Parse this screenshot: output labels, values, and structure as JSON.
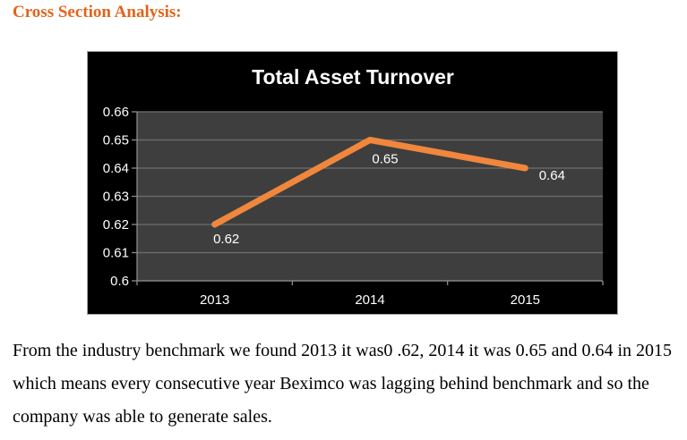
{
  "page": {
    "heading": "Cross Section Analysis:",
    "heading_color": "#e2641a",
    "paragraph_lines": [
      "From the industry benchmark we found 2013 it was0 .62, 2014 it was 0.65 and 0.64 in 2015",
      "which means every consecutive year Beximco was lagging behind benchmark and so the",
      "company was able to generate sales."
    ]
  },
  "chart_data": {
    "type": "line",
    "title": "Total Asset Turnover",
    "categories": [
      "2013",
      "2014",
      "2015"
    ],
    "values": [
      0.62,
      0.65,
      0.64
    ],
    "data_labels": [
      "0.62",
      "0.65",
      "0.64"
    ],
    "yticks": [
      "0.66",
      "0.65",
      "0.64",
      "0.63",
      "0.62",
      "0.61",
      "0.6"
    ],
    "ylim": [
      0.6,
      0.66
    ],
    "grid": true,
    "legend": "none",
    "xlabel": "",
    "ylabel": "",
    "colors": {
      "line": "#f0873c",
      "chart_bg": "#000000",
      "plot_bg": "#3e3e3e",
      "gridline": "#6f6f6f",
      "axis": "#8c8c8c",
      "text": "#ffffff",
      "border": "#a6a6a6"
    }
  }
}
